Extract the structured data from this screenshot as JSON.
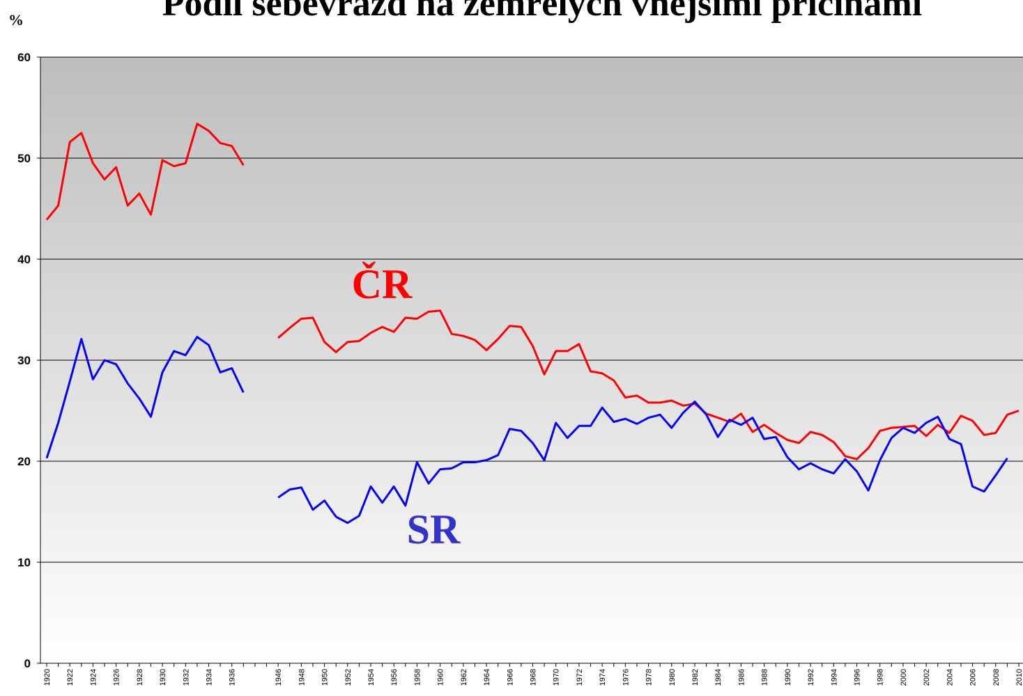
{
  "chart_data": {
    "type": "line",
    "title": "Podíl sebevražd na zemřelých vnějšími příčinami",
    "y_label": "%",
    "categories": [
      "1920",
      null,
      "1922",
      null,
      "1924",
      null,
      "1926",
      null,
      "1928",
      null,
      "1930",
      null,
      "1932",
      null,
      "1934",
      null,
      "1936",
      null,
      null,
      null,
      "1946",
      null,
      "1948",
      null,
      "1950",
      null,
      "1952",
      null,
      "1954",
      null,
      "1956",
      null,
      "1958",
      null,
      "1960",
      null,
      "1962",
      null,
      "1964",
      null,
      "1966",
      null,
      "1968",
      null,
      "1970",
      null,
      "1972",
      null,
      "1974",
      null,
      "1976",
      null,
      "1978",
      null,
      "1980",
      null,
      "1982",
      null,
      "1984",
      null,
      "1986",
      null,
      "1988",
      null,
      "1990",
      null,
      "1992",
      null,
      "1994",
      null,
      "1996",
      null,
      "1998",
      null,
      "2000",
      null,
      "2002",
      null,
      "2004",
      null,
      "2006",
      null,
      "2008",
      null,
      "2010"
    ],
    "series": [
      {
        "name": "ČR",
        "color": "#ff0000",
        "values": [
          43.9,
          45.3,
          51.6,
          52.5,
          49.5,
          47.9,
          49.1,
          45.3,
          46.5,
          44.4,
          49.8,
          49.2,
          49.5,
          53.4,
          52.7,
          51.5,
          51.2,
          49.3,
          null,
          null,
          32.2,
          33.2,
          34.1,
          34.2,
          31.8,
          30.8,
          31.8,
          31.9,
          32.7,
          33.3,
          32.8,
          34.2,
          34.1,
          34.8,
          34.9,
          32.6,
          32.4,
          32.0,
          31.0,
          32.1,
          33.4,
          33.3,
          31.4,
          28.6,
          30.9,
          30.9,
          31.6,
          28.9,
          28.7,
          28.0,
          26.3,
          26.5,
          25.8,
          25.8,
          26.0,
          25.5,
          25.7,
          24.7,
          24.3,
          23.9,
          24.7,
          22.9,
          23.6,
          22.8,
          22.1,
          21.8,
          22.9,
          22.6,
          21.9,
          20.5,
          20.2,
          21.3,
          23.0,
          23.3,
          23.4,
          23.5,
          22.5,
          23.6,
          22.8,
          24.5,
          24.0,
          22.6,
          22.8,
          24.6,
          25.0
        ]
      },
      {
        "name": "SR",
        "color": "#0000ff",
        "label_color": "#3333cc",
        "values": [
          20.3,
          23.8,
          27.9,
          32.1,
          28.1,
          30.0,
          29.6,
          27.7,
          26.2,
          24.4,
          28.8,
          30.9,
          30.5,
          32.3,
          31.5,
          28.8,
          29.2,
          26.8,
          null,
          null,
          16.4,
          17.2,
          17.4,
          15.2,
          16.1,
          14.5,
          13.9,
          14.6,
          17.5,
          15.9,
          17.5,
          15.6,
          19.9,
          17.8,
          19.2,
          19.3,
          19.9,
          19.9,
          20.1,
          20.6,
          23.2,
          23.0,
          21.8,
          20.1,
          23.8,
          22.3,
          23.5,
          23.5,
          25.3,
          23.9,
          24.2,
          23.7,
          24.3,
          24.6,
          23.3,
          24.8,
          25.9,
          24.6,
          22.4,
          24.1,
          23.6,
          24.3,
          22.2,
          22.4,
          20.4,
          19.2,
          19.8,
          19.2,
          18.8,
          20.2,
          19.0,
          17.1,
          20.1,
          22.3,
          23.3,
          22.8,
          23.8,
          24.4,
          22.2,
          21.7,
          17.5,
          17.0,
          18.6,
          20.3,
          null
        ]
      }
    ],
    "ylim": [
      0,
      60
    ],
    "yticks": [
      0,
      10,
      20,
      30,
      40,
      50,
      60
    ],
    "grid": true
  }
}
